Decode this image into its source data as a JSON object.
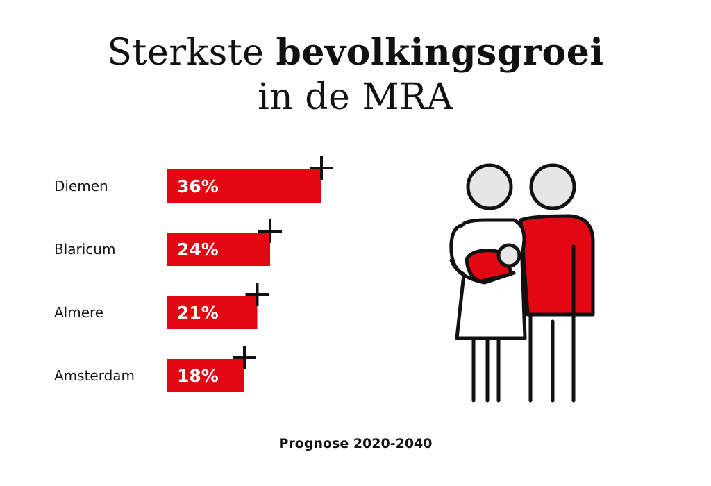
{
  "title": {
    "part1": "Sterkste",
    "part2": "bevolkingsgroei",
    "line2": "in de MRA"
  },
  "footnote": "Prognose 2020-2040",
  "colors": {
    "accent": "#e30613",
    "text": "#111111",
    "head_fill": "#e6e6e6"
  },
  "chart_data": {
    "type": "bar",
    "orientation": "horizontal",
    "categories": [
      "Diemen",
      "Blaricum",
      "Almere",
      "Amsterdam"
    ],
    "values": [
      36,
      24,
      21,
      18
    ],
    "value_labels": [
      "36%",
      "24%",
      "21%",
      "18%"
    ],
    "unit": "%",
    "title": "Sterkste bevolkingsgroei in de MRA",
    "subtitle": "Prognose 2020-2040",
    "grid": false
  }
}
